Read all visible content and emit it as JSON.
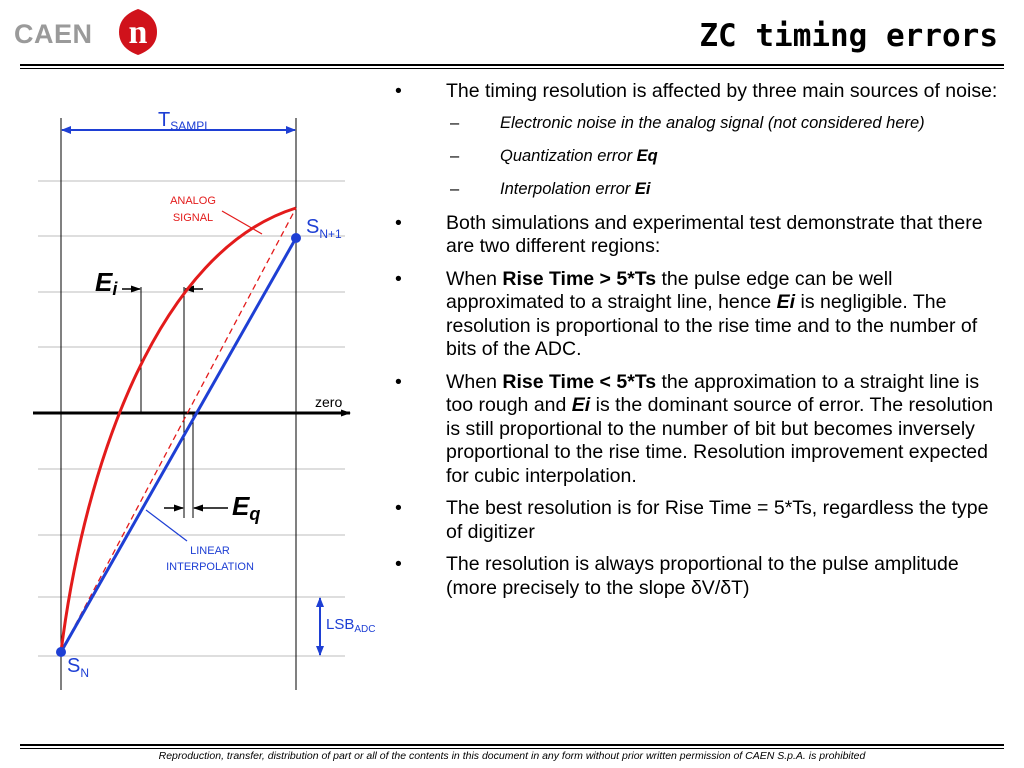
{
  "header": {
    "logo_text": "CAEN",
    "logo_mark": "n",
    "title": "ZC timing errors"
  },
  "colors": {
    "accent_red": "#e31b1b",
    "interp_blue": "#1e3fd4",
    "annotation_red": "#e31b1b",
    "logo_grey": "#9a9a9a",
    "logo_mark_red": "#d0121b"
  },
  "diagram": {
    "t_sampl_main": "T",
    "t_sampl_sub": "SAMPL",
    "analog_signal_line1": "ANALOG",
    "analog_signal_line2": "SIGNAL",
    "s_n1_main": "S",
    "s_n1_sub": "N+1",
    "ei_main": "E",
    "ei_sub": "i",
    "zero": "zero",
    "eq_main": "E",
    "eq_sub": "q",
    "linear_interp_line1": "LINEAR",
    "linear_interp_line2": "INTERPOLATION",
    "lsb_main": "LSB",
    "lsb_sub": "ADC",
    "s_n_main": "S",
    "s_n_sub": "N"
  },
  "bullets": {
    "b1": "The timing resolution is affected by three main sources of noise:",
    "sub1": "Electronic noise in the analog signal (not considered here)",
    "sub2_text": "Quantization error ",
    "sub2_bold": "Eq",
    "sub3_text": "Interpolation error ",
    "sub3_bold": "Ei",
    "b2": "Both simulations and experimental test demonstrate that there are two different regions:",
    "b3_pre": "When ",
    "b3_bold": "Rise Time > 5*Ts",
    "b3_mid": " the pulse edge can be well approximated to a straight line, hence ",
    "b3_bold2": "Ei",
    "b3_post": " is negligible. The resolution is proportional to the rise time and to the number of bits of the ADC.",
    "b4_pre": "When ",
    "b4_bold": "Rise Time < 5*Ts",
    "b4_mid": " the approximation to a straight line is too rough and ",
    "b4_bold2": "Ei",
    "b4_post": " is the dominant source of error. The resolution is still proportional to the number of bit but becomes inversely proportional to the rise time. Resolution improvement expected for cubic interpolation.",
    "b5": "The best resolution is for Rise Time = 5*Ts, regardless the type of digitizer",
    "b6_pre": "The resolution is always proportional to the pulse amplitude (more precisely to the slope ",
    "b6_formula": "δV/δT",
    "b6_post": ")"
  },
  "footer": {
    "text": "Reproduction, transfer, distribution of part or all of the contents in this document in any form without prior written permission of  CAEN S.p.A. is prohibited"
  }
}
